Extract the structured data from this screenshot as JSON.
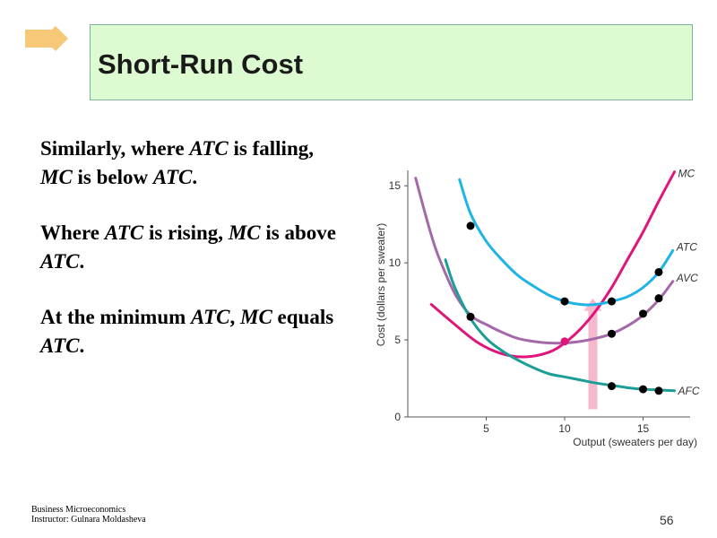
{
  "slide": {
    "title": "Short-Run Cost",
    "page_number": "56",
    "footer_line1": "Business Microeconomics",
    "footer_line2": "Instructor: Gulnara Moldasheva"
  },
  "bullets": [
    {
      "parts": [
        {
          "t": "Similarly, where ",
          "i": false
        },
        {
          "t": "ATC",
          "i": true
        },
        {
          "t": " is falling, ",
          "i": false
        },
        {
          "t": "MC",
          "i": true
        },
        {
          "t": " is below ",
          "i": false
        },
        {
          "t": "ATC",
          "i": true
        },
        {
          "t": ".",
          "i": false
        }
      ]
    },
    {
      "parts": [
        {
          "t": "Where ",
          "i": false
        },
        {
          "t": "ATC",
          "i": true
        },
        {
          "t": " is rising, ",
          "i": false
        },
        {
          "t": "MC",
          "i": true
        },
        {
          "t": " is above ",
          "i": false
        },
        {
          "t": "ATC",
          "i": true
        },
        {
          "t": ".",
          "i": false
        }
      ]
    },
    {
      "parts": [
        {
          "t": "At the minimum ",
          "i": false
        },
        {
          "t": "ATC",
          "i": true
        },
        {
          "t": ", ",
          "i": false
        },
        {
          "t": "MC",
          "i": true
        },
        {
          "t": " equals ",
          "i": false
        },
        {
          "t": "ATC",
          "i": true
        },
        {
          "t": ".",
          "i": false
        }
      ]
    }
  ],
  "colors": {
    "atc": "#1fb4e6",
    "avc": "#a469a8",
    "afc": "#1a9e96",
    "mc": "#e0157a",
    "arrow": "#f6b8cc",
    "dot": "#000000",
    "diamond": "#f6c878",
    "title_bg": "#ddfbd0"
  },
  "chart_data": {
    "type": "line",
    "xlabel": "Output (sweaters per day)",
    "ylabel": "Cost (dollars per sweater)",
    "xlim": [
      0,
      18
    ],
    "ylim": [
      0,
      16
    ],
    "xticks": [
      "5",
      "10",
      "15"
    ],
    "yticks": [
      "0",
      "5",
      "10",
      "15"
    ],
    "series": [
      {
        "name": "MC",
        "color": "mc",
        "x": [
          1.5,
          3,
          4.5,
          6,
          7.5,
          9,
          10,
          11,
          12,
          13,
          14,
          15,
          16,
          17
        ],
        "y": [
          7.3,
          6,
          4.8,
          4.1,
          3.9,
          4.2,
          4.8,
          5.7,
          6.9,
          8.4,
          10.2,
          12,
          14,
          15.9
        ]
      },
      {
        "name": "ATC",
        "color": "atc",
        "x": [
          3.3,
          4,
          5,
          6,
          7,
          8,
          9,
          10,
          11,
          12,
          13,
          14,
          15,
          16,
          16.9
        ],
        "y": [
          15.4,
          13.2,
          11.4,
          10.2,
          9.2,
          8.5,
          7.9,
          7.5,
          7.3,
          7.3,
          7.5,
          7.8,
          8.4,
          9.4,
          10.8
        ]
      },
      {
        "name": "AVC",
        "color": "avc",
        "x": [
          0.5,
          1,
          1.5,
          2,
          3,
          4,
          5,
          6,
          7,
          8,
          9,
          10,
          11,
          12,
          13,
          14,
          15,
          16,
          16.9
        ],
        "y": [
          15.5,
          13.6,
          11.8,
          10.3,
          8,
          6.6,
          6,
          5.5,
          5.1,
          4.9,
          4.8,
          4.8,
          4.9,
          5.1,
          5.4,
          5.9,
          6.6,
          7.6,
          8.8
        ]
      },
      {
        "name": "AFC",
        "color": "afc",
        "x": [
          2.4,
          3,
          4,
          5,
          6,
          7,
          8,
          9,
          10,
          11,
          12,
          13,
          14,
          15,
          16,
          17
        ],
        "y": [
          10.2,
          8.4,
          6.4,
          5.1,
          4.3,
          3.7,
          3.2,
          2.8,
          2.6,
          2.4,
          2.2,
          2.05,
          1.9,
          1.8,
          1.75,
          1.7
        ]
      }
    ],
    "points": [
      {
        "x": 4,
        "y": 12.4
      },
      {
        "x": 10,
        "y": 7.5
      },
      {
        "x": 13,
        "y": 7.5
      },
      {
        "x": 16,
        "y": 9.4
      },
      {
        "x": 4,
        "y": 6.5
      },
      {
        "x": 13,
        "y": 5.4
      },
      {
        "x": 15,
        "y": 6.7
      },
      {
        "x": 16,
        "y": 7.7
      },
      {
        "x": 13,
        "y": 2.0
      },
      {
        "x": 15,
        "y": 1.8
      },
      {
        "x": 16,
        "y": 1.7
      }
    ],
    "mc_point": {
      "x": 10,
      "y": 4.9
    },
    "arrow": {
      "x": 11.8,
      "y_from": 0.5,
      "y_to": 7.7
    }
  }
}
